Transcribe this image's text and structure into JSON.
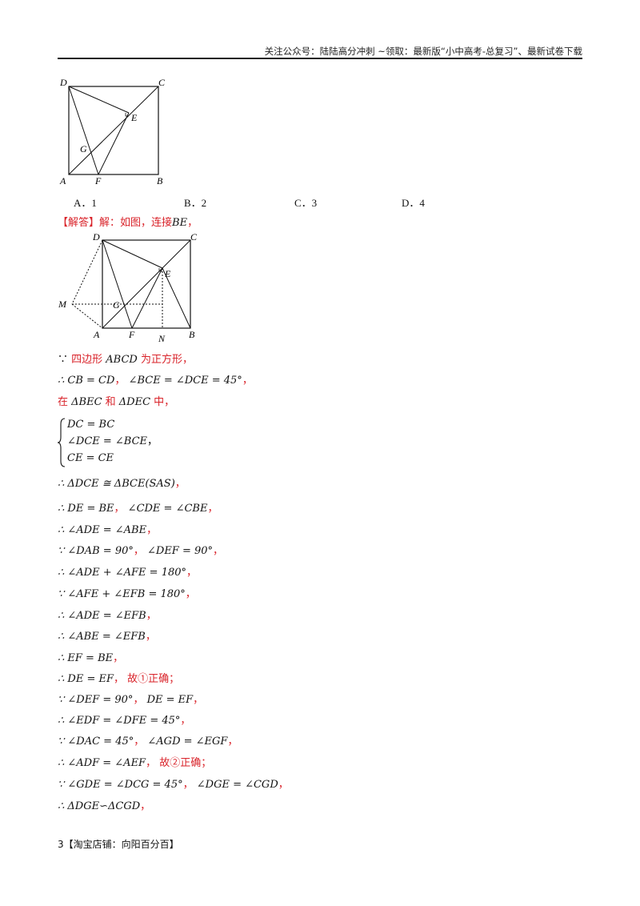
{
  "header": "关注公众号：陆陆高分冲刺  ~领取：最新版“小中高考-总复习”、最新试卷下载",
  "figure1": {
    "labels": {
      "D": "D",
      "C": "C",
      "E": "E",
      "G": "G",
      "A": "A",
      "F": "F",
      "B": "B"
    }
  },
  "options": {
    "a": "A．1",
    "b": "B．2",
    "c": "C．3",
    "d": "D．4"
  },
  "answer": {
    "tag": "【解答】",
    "text": "解：如图，连接",
    "math": "BE",
    "tail": "，"
  },
  "figure2": {
    "labels": {
      "D": "D",
      "C": "C",
      "E": "E",
      "M": "M",
      "G": "G",
      "A": "A",
      "F": "F",
      "N": "N",
      "B": "B"
    }
  },
  "lines": {
    "l1": {
      "sym": "∵ ",
      "t1": "四边形 ",
      "m1": "ABCD",
      "t2": " 为正方形，"
    },
    "l2": {
      "m1": "∴ CB = CD",
      "t1": "，  ",
      "m2": "∠BCE = ∠DCE = 45°",
      "t2": "，"
    },
    "l3": {
      "t1": "在 ",
      "m1": "ΔBEC",
      "t2": " 和 ",
      "m2": "ΔDEC",
      "t3": " 中，"
    },
    "l4": {
      "m1": "∴ ΔDCE ≅ ΔBCE(SAS)",
      "t1": "，"
    },
    "l5": {
      "m1": "∴ DE = BE",
      "t1": "，  ",
      "m2": "∠CDE = ∠CBE",
      "t2": "，"
    },
    "l6": {
      "m1": "∴ ∠ADE = ∠ABE",
      "t1": "，"
    },
    "l7": {
      "m1": "∵ ∠DAB = 90°",
      "t1": "，  ",
      "m2": "∠DEF = 90°",
      "t2": "，"
    },
    "l8": {
      "m1": "∴ ∠ADE + ∠AFE = 180°",
      "t1": "，"
    },
    "l9": {
      "m1": "∵ ∠AFE + ∠EFB = 180°",
      "t1": "，"
    },
    "l10": {
      "m1": "∴ ∠ADE = ∠EFB",
      "t1": "，"
    },
    "l11": {
      "m1": "∴ ∠ABE = ∠EFB",
      "t1": "，"
    },
    "l12": {
      "m1": "∴ EF = BE",
      "t1": "，"
    },
    "l13": {
      "m1": "∴ DE = EF",
      "t1": "，  故①正确；"
    },
    "l14": {
      "m1": "∵ ∠DEF = 90°",
      "t1": "，  ",
      "m2": "DE = EF",
      "t2": "，"
    },
    "l15": {
      "m1": "∴ ∠EDF = ∠DFE = 45°",
      "t1": "，"
    },
    "l16": {
      "m1": "∵ ∠DAC = 45°",
      "t1": "，  ",
      "m2": "∠AGD = ∠EGF",
      "t2": "，"
    },
    "l17": {
      "m1": "∴ ∠ADF = ∠AEF",
      "t1": "，  故②正确；"
    },
    "l18": {
      "m1": "∵ ∠GDE = ∠DCG = 45°",
      "t1": "，  ",
      "m2": "∠DGE = ∠CGD",
      "t2": "，"
    },
    "l19": {
      "m1": "∴ ΔDGE∽ΔCGD",
      "t1": "，"
    }
  },
  "system": [
    "DC = BC",
    "∠DCE = ∠BCE",
    "CE = CE"
  ],
  "system_tail": "，",
  "footer": "3【淘宝店铺：向阳百分百】"
}
